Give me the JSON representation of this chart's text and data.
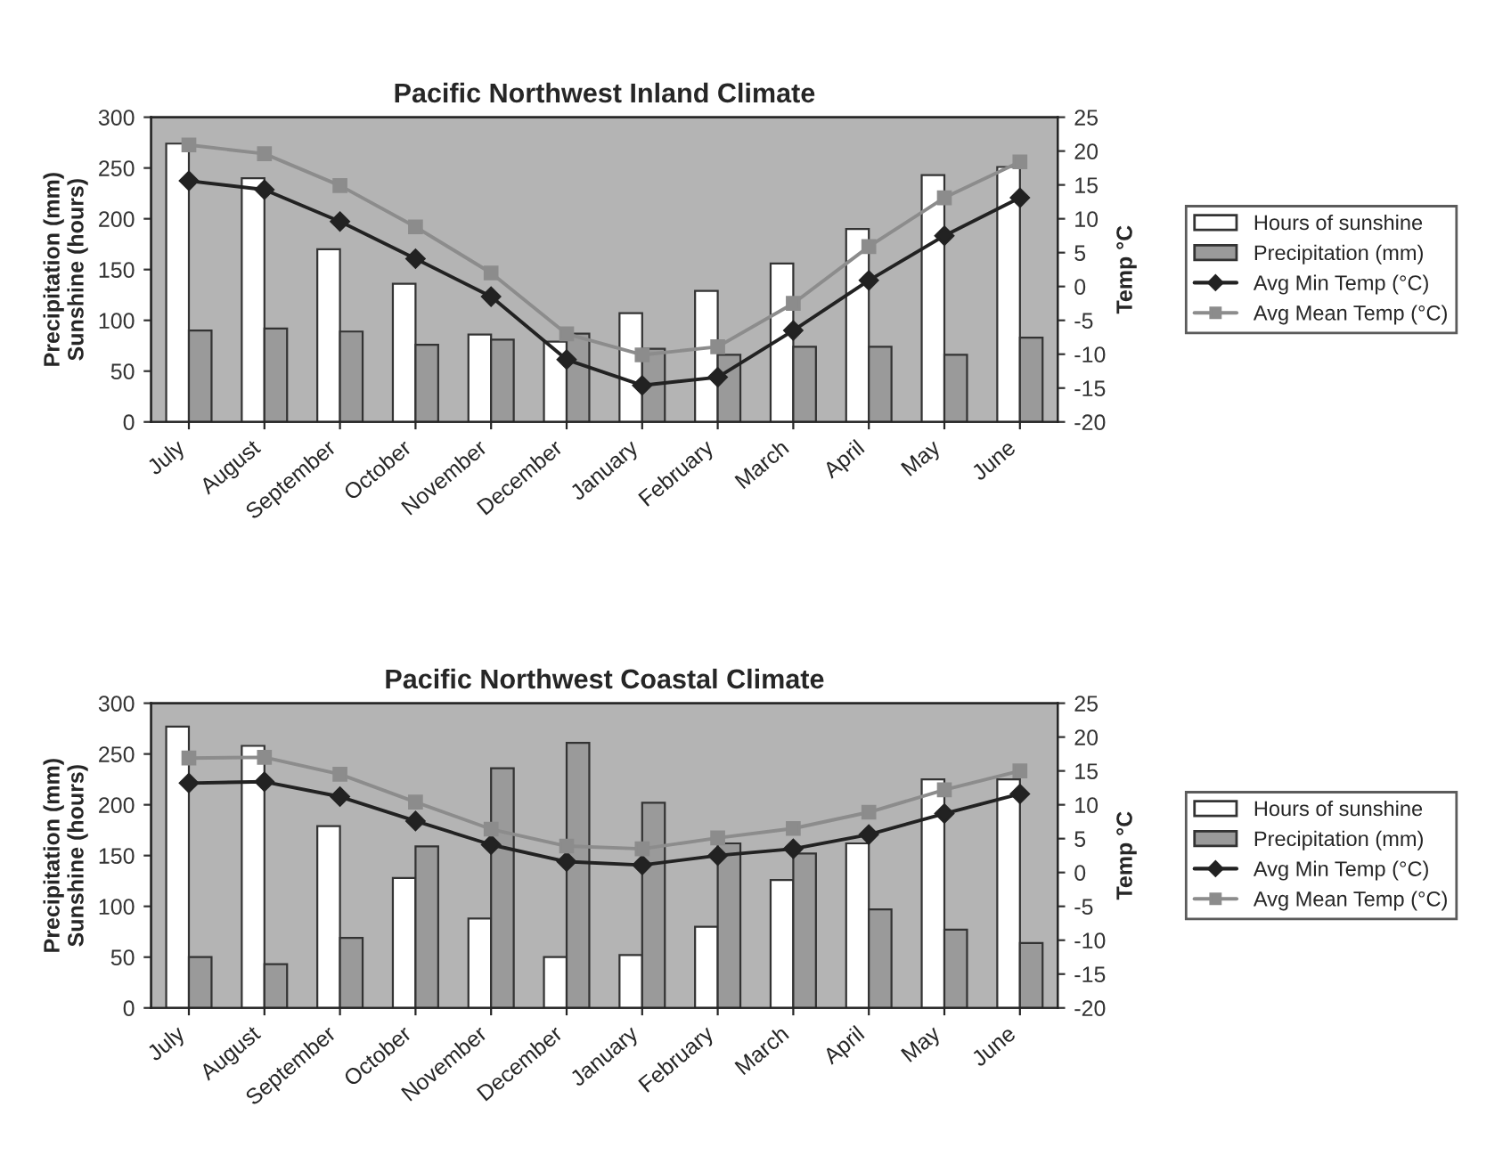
{
  "chart_data": [
    {
      "type": "bar",
      "title": "Pacific Northwest Inland Climate",
      "ylabel": "Precipitation (mm)\nSunshine (hours)",
      "y2label": "Temp °C",
      "categories": [
        "July",
        "August",
        "September",
        "October",
        "November",
        "December",
        "January",
        "February",
        "March",
        "April",
        "May",
        "June"
      ],
      "series": [
        {
          "name": "Hours of sunshine",
          "color": "#ffffff",
          "values": [
            274,
            240,
            170,
            136,
            86,
            79,
            107,
            129,
            156,
            190,
            243,
            251
          ]
        },
        {
          "name": "Precipitation (mm)",
          "color": "#9a9a9a",
          "values": [
            90,
            92,
            89,
            76,
            81,
            87,
            72,
            66,
            74,
            74,
            66,
            83
          ]
        },
        {
          "name": "Avg Min Temp (°C)",
          "type": "line",
          "axis": "y2",
          "color": "#222222",
          "marker": "diamond",
          "values": [
            15.6,
            14.3,
            9.6,
            4.1,
            -1.5,
            -10.8,
            -14.6,
            -13.4,
            -6.5,
            0.9,
            7.5,
            13.1
          ]
        },
        {
          "name": "Avg Mean Temp (°C)",
          "type": "line",
          "axis": "y2",
          "color": "#8c8c8c",
          "marker": "square",
          "values": [
            20.9,
            19.6,
            14.9,
            8.8,
            2.0,
            -7.0,
            -10.1,
            -8.9,
            -2.5,
            5.9,
            13.1,
            18.4
          ]
        }
      ],
      "ylim": [
        0,
        300
      ],
      "yticks": [
        0,
        50,
        100,
        150,
        200,
        250,
        300
      ],
      "y2lim": [
        -20,
        25
      ],
      "y2ticks": [
        -20,
        -15,
        -10,
        -5,
        0,
        5,
        10,
        15,
        20,
        25
      ],
      "legend": "right",
      "grid": false
    },
    {
      "type": "bar",
      "title": "Pacific Northwest Coastal Climate",
      "ylabel": "Precipitation (mm)\nSunshine (hours)",
      "y2label": "Temp °C",
      "categories": [
        "July",
        "August",
        "September",
        "October",
        "November",
        "December",
        "January",
        "February",
        "March",
        "April",
        "May",
        "June"
      ],
      "series": [
        {
          "name": "Hours of sunshine",
          "color": "#ffffff",
          "values": [
            277,
            258,
            179,
            128,
            88,
            50,
            52,
            80,
            126,
            162,
            225,
            225
          ]
        },
        {
          "name": "Precipitation (mm)",
          "color": "#9a9a9a",
          "values": [
            50,
            43,
            69,
            159,
            236,
            261,
            202,
            162,
            152,
            97,
            77,
            64
          ]
        },
        {
          "name": "Avg Min Temp (°C)",
          "type": "line",
          "axis": "y2",
          "color": "#222222",
          "marker": "diamond",
          "values": [
            13.2,
            13.4,
            11.2,
            7.6,
            4.1,
            1.6,
            1.1,
            2.5,
            3.5,
            5.6,
            8.7,
            11.6
          ]
        },
        {
          "name": "Avg Mean Temp (°C)",
          "type": "line",
          "axis": "y2",
          "color": "#8c8c8c",
          "marker": "square",
          "values": [
            16.9,
            17.0,
            14.5,
            10.4,
            6.4,
            3.9,
            3.5,
            5.1,
            6.5,
            8.9,
            12.2,
            15.0
          ]
        }
      ],
      "ylim": [
        0,
        300
      ],
      "yticks": [
        0,
        50,
        100,
        150,
        200,
        250,
        300
      ],
      "y2lim": [
        -20,
        25
      ],
      "y2ticks": [
        -20,
        -15,
        -10,
        -5,
        0,
        5,
        10,
        15,
        20,
        25
      ],
      "legend": "right",
      "grid": false
    }
  ]
}
